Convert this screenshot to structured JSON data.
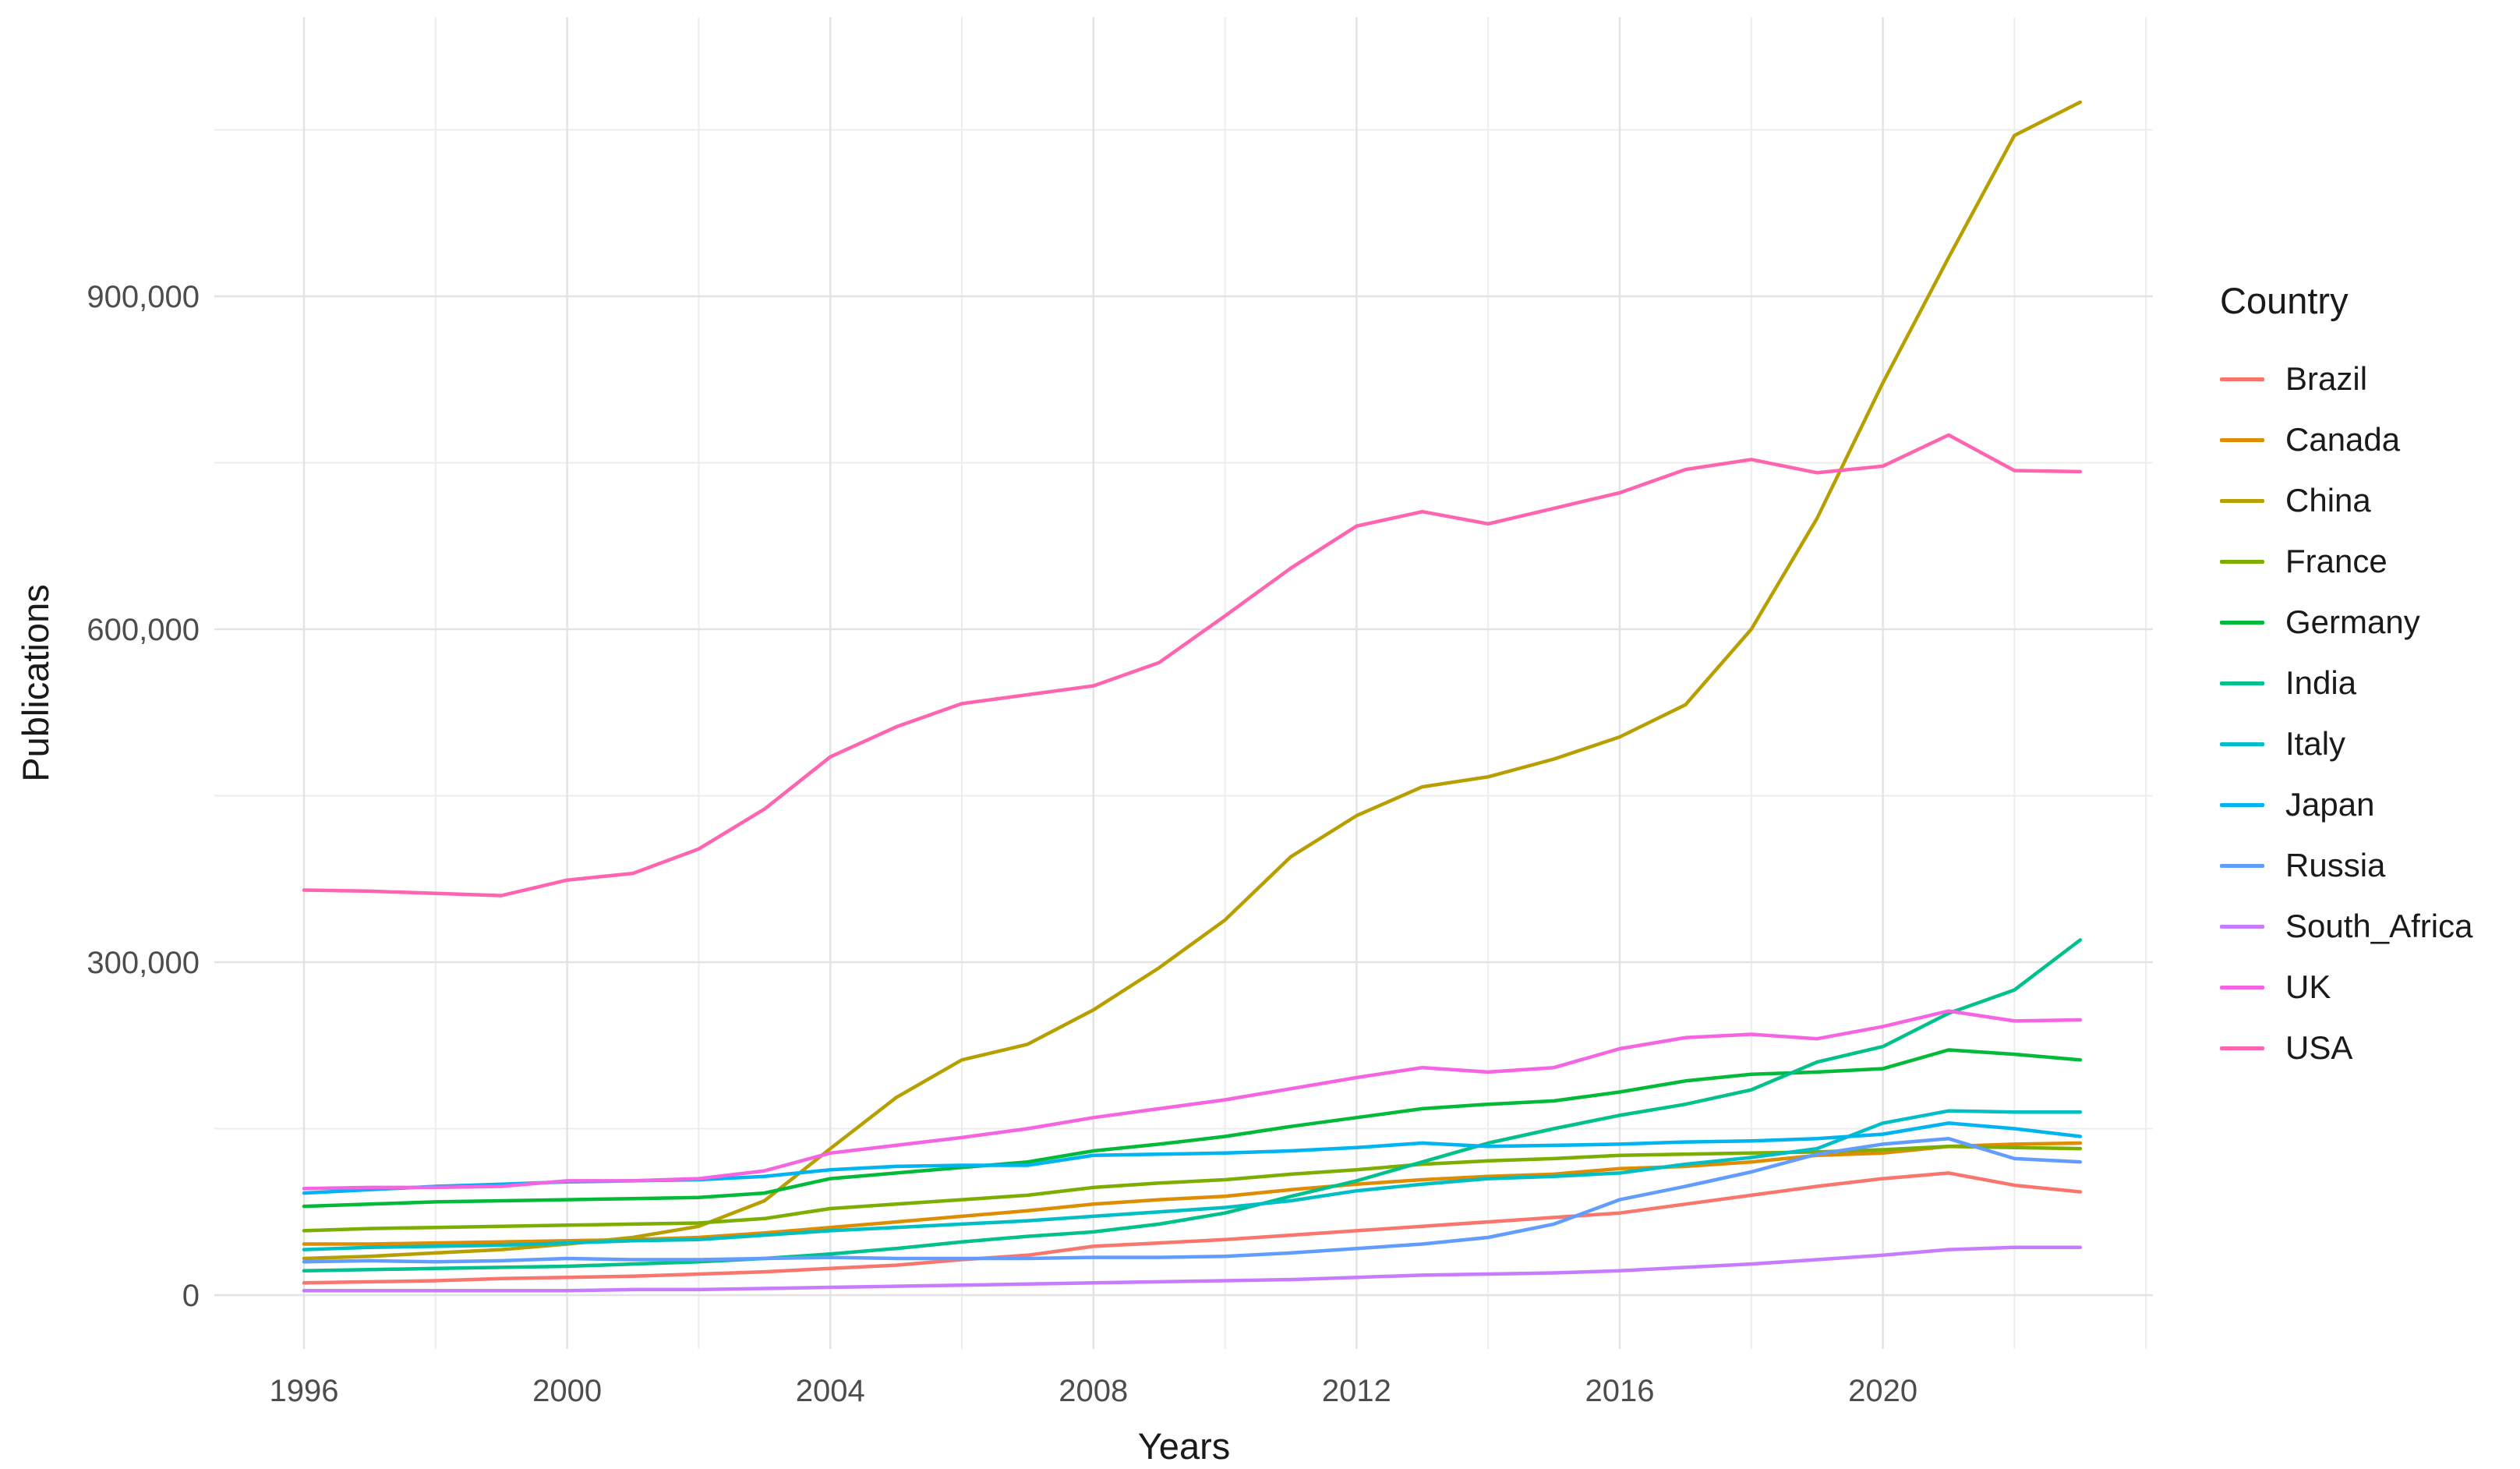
{
  "chart_data": {
    "type": "line",
    "title": "",
    "xlabel": "Years",
    "ylabel": "Publications",
    "legend_title": "Country",
    "legend_position": "right",
    "grid": true,
    "x": [
      1996,
      1997,
      1998,
      1999,
      2000,
      2001,
      2002,
      2003,
      2004,
      2005,
      2006,
      2007,
      2008,
      2009,
      2010,
      2011,
      2012,
      2013,
      2014,
      2015,
      2016,
      2017,
      2018,
      2019,
      2020,
      2021,
      2022,
      2023
    ],
    "x_tick_labels": [
      "1996",
      "2000",
      "2004",
      "2008",
      "2012",
      "2016",
      "2020"
    ],
    "x_ticks_major": [
      1996,
      2000,
      2004,
      2008,
      2012,
      2016,
      2020
    ],
    "x_ticks_minor": [
      1998,
      2002,
      2006,
      2010,
      2014,
      2018,
      2022,
      2024
    ],
    "y_tick_labels": [
      "0",
      "300,000",
      "600,000",
      "900,000"
    ],
    "y_ticks_major": [
      0,
      300000,
      600000,
      900000
    ],
    "y_ticks_minor": [
      150000,
      450000,
      750000,
      1050000
    ],
    "ylim": [
      -50000,
      1130000
    ],
    "xlim": [
      1994.6,
      2024.4
    ],
    "series": [
      {
        "name": "Brazil",
        "color": "#F8766D",
        "values": [
          11000,
          12000,
          13000,
          15000,
          16000,
          17000,
          19000,
          21000,
          24000,
          27000,
          32000,
          36000,
          44000,
          47000,
          50000,
          54000,
          58000,
          62000,
          66000,
          70000,
          74000,
          82000,
          90000,
          98000,
          105000,
          110000,
          99000,
          93000
        ]
      },
      {
        "name": "Canada",
        "color": "#DE8C00",
        "values": [
          46000,
          46000,
          47000,
          48000,
          49000,
          50000,
          52000,
          56000,
          61000,
          66000,
          71000,
          76000,
          82000,
          86000,
          89000,
          95000,
          100000,
          104000,
          107000,
          109000,
          114000,
          116000,
          120000,
          126000,
          128000,
          134000,
          136000,
          137000
        ]
      },
      {
        "name": "China",
        "color": "#B79F00",
        "values": [
          33000,
          35000,
          38000,
          41000,
          46000,
          52000,
          62000,
          85000,
          132000,
          178000,
          212000,
          226000,
          257000,
          295000,
          338000,
          395000,
          432000,
          458000,
          467000,
          483000,
          503000,
          532000,
          600000,
          700000,
          822000,
          935000,
          1045000,
          1075000
        ]
      },
      {
        "name": "France",
        "color": "#7CAE00",
        "values": [
          58000,
          60000,
          61000,
          62000,
          63000,
          64000,
          65000,
          69000,
          78000,
          82000,
          86000,
          90000,
          97000,
          101000,
          104000,
          109000,
          113000,
          118000,
          121000,
          123000,
          126000,
          127000,
          128000,
          129000,
          131000,
          134000,
          133000,
          132000
        ]
      },
      {
        "name": "Germany",
        "color": "#00BA38",
        "values": [
          80000,
          82000,
          84000,
          85000,
          86000,
          87000,
          88000,
          92000,
          105000,
          110000,
          115000,
          120000,
          130000,
          136000,
          143000,
          152000,
          160000,
          168000,
          172000,
          175000,
          183000,
          193000,
          199000,
          201000,
          204000,
          221000,
          217000,
          212000
        ]
      },
      {
        "name": "India",
        "color": "#00C08B",
        "values": [
          22000,
          23000,
          24000,
          25000,
          26000,
          28000,
          30000,
          33000,
          37000,
          42000,
          48000,
          53000,
          57000,
          64000,
          74000,
          89000,
          103000,
          120000,
          137000,
          150000,
          162000,
          172000,
          185000,
          210000,
          224000,
          254000,
          275000,
          320000
        ]
      },
      {
        "name": "Italy",
        "color": "#00BFC4",
        "values": [
          41000,
          43000,
          44000,
          45000,
          47000,
          49000,
          50000,
          54000,
          58000,
          61000,
          64000,
          67000,
          71000,
          75000,
          79000,
          85000,
          94000,
          100000,
          105000,
          107000,
          110000,
          118000,
          124000,
          132000,
          155000,
          166000,
          165000,
          165000
        ]
      },
      {
        "name": "Japan",
        "color": "#00B4F0",
        "values": [
          92000,
          95000,
          98000,
          100000,
          102000,
          103000,
          104000,
          107000,
          113000,
          116000,
          117000,
          117000,
          126000,
          127000,
          128000,
          130000,
          133000,
          137000,
          134000,
          135000,
          136000,
          138000,
          139000,
          141000,
          145000,
          155000,
          150000,
          143000
        ]
      },
      {
        "name": "Russia",
        "color": "#619CFF",
        "values": [
          30000,
          31000,
          30000,
          31000,
          33000,
          32000,
          32000,
          33000,
          34000,
          33000,
          33000,
          33000,
          34000,
          34000,
          35000,
          38000,
          42000,
          46000,
          52000,
          64000,
          86000,
          98000,
          111000,
          127000,
          136000,
          141000,
          123000,
          120000
        ]
      },
      {
        "name": "South_Africa",
        "color": "#C77CFF",
        "values": [
          4000,
          4000,
          4000,
          4000,
          4000,
          5000,
          5000,
          6000,
          7000,
          8000,
          9000,
          10000,
          11000,
          12000,
          13000,
          14000,
          16000,
          18000,
          19000,
          20000,
          22000,
          25000,
          28000,
          32000,
          36000,
          41000,
          43000,
          43000
        ]
      },
      {
        "name": "UK",
        "color": "#F564E3",
        "values": [
          96000,
          97000,
          97000,
          98000,
          103000,
          103000,
          105000,
          112000,
          128000,
          135000,
          142000,
          150000,
          160000,
          168000,
          176000,
          186000,
          196000,
          205000,
          201000,
          205000,
          222000,
          232000,
          235000,
          231000,
          242000,
          256000,
          247000,
          248000
        ]
      },
      {
        "name": "USA",
        "color": "#FF64B0",
        "values": [
          365000,
          364000,
          362000,
          360000,
          374000,
          380000,
          402000,
          438000,
          485000,
          512000,
          533000,
          541000,
          549000,
          570000,
          612000,
          655000,
          693000,
          706000,
          695000,
          709000,
          723000,
          744000,
          753000,
          741000,
          747000,
          775000,
          743000,
          742000
        ]
      }
    ]
  },
  "colors": {
    "background": "#FFFFFF",
    "grid_major": "#E3E3E3",
    "grid_minor": "#EDEDED",
    "tick_label": "#4D4D4D",
    "axis_title": "#1A1A1A",
    "legend_text": "#1A1A1A"
  }
}
